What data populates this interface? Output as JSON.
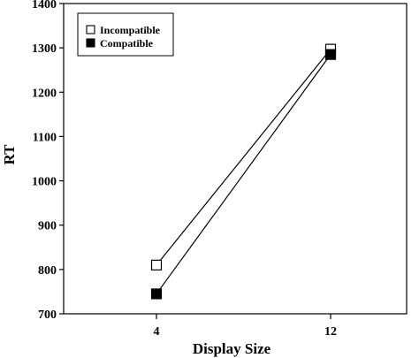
{
  "chart_data": {
    "type": "line",
    "title": "",
    "xlabel": "Display Size",
    "ylabel": "RT",
    "categories": [
      "4",
      "12"
    ],
    "ylim": [
      700,
      1400
    ],
    "yticks": [
      700,
      800,
      900,
      1000,
      1100,
      1200,
      1300,
      1400
    ],
    "grid": false,
    "legend_position": "top-left",
    "series": [
      {
        "name": "Incompatible",
        "marker": "open-square",
        "values": [
          810,
          1297
        ]
      },
      {
        "name": "Compatible",
        "marker": "filled-square",
        "values": [
          745,
          1285
        ]
      }
    ]
  },
  "colors": {
    "line": "#000000",
    "background": "#ffffff"
  }
}
